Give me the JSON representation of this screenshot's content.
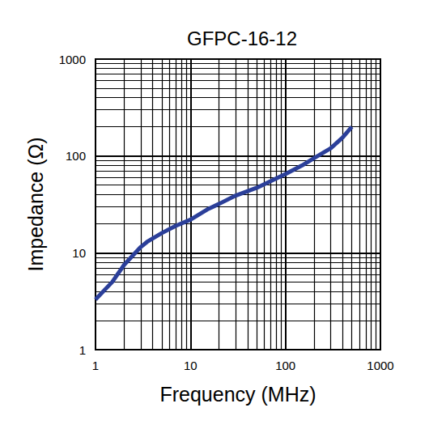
{
  "chart_data": {
    "type": "line",
    "title": "GFPC-16-12",
    "x_label": "Frequency (MHz)",
    "y_label": "Impedance (Ω)",
    "x": [
      1,
      1.5,
      2,
      3,
      3.5,
      5,
      7,
      10,
      15,
      20,
      30,
      50,
      70,
      100,
      150,
      200,
      300,
      400,
      500
    ],
    "values": [
      3.3,
      5,
      7.5,
      11.5,
      13,
      16,
      19,
      22,
      28,
      32,
      39,
      47,
      55,
      65,
      80,
      95,
      120,
      155,
      200
    ],
    "color": "#2b3f99",
    "xlim": [
      1,
      1000
    ],
    "ylim": [
      1,
      1000
    ],
    "xticks": [
      1,
      10,
      100,
      1000
    ],
    "yticks": [
      1,
      10,
      100,
      1000
    ],
    "log": true,
    "grid": true
  }
}
